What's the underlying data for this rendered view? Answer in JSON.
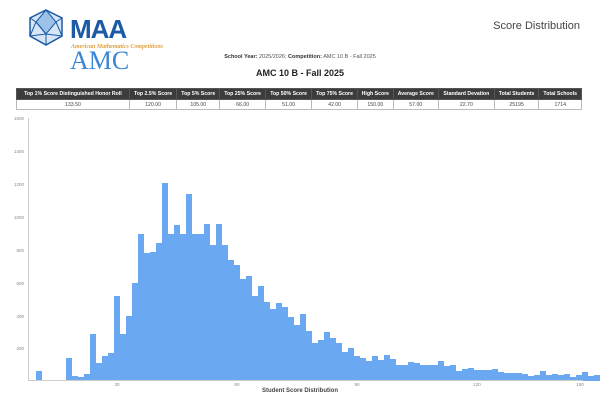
{
  "header": {
    "logo_main": "MAA",
    "logo_amc": "AMC",
    "logo_sub": "American Mathematics Competitions",
    "page_title": "Score Distribution"
  },
  "filters": {
    "school_year_label": "School Year:",
    "school_year_value": "2025/2026;",
    "competition_label": "Competition:",
    "competition_value": "AMC 10 B - Fall 2025"
  },
  "competition_title": "AMC 10 B - Fall 2025",
  "stats_table": {
    "headers": [
      "Top 1% Score Distinguished Honor Roll",
      "Top 2.5% Score",
      "Top 5% Score",
      "Top 25% Score",
      "Top 50% Score",
      "Top 75% Score",
      "High Score",
      "Average Score",
      "Standard Devation",
      "Total Students",
      "Total Schools"
    ],
    "values": [
      "133.50",
      "120.00",
      "105.00",
      "66.00",
      "51.00",
      "42.00",
      "150.00",
      "57.00",
      "22.70",
      "25195",
      "1714"
    ]
  },
  "colors": {
    "bar": "#6aa8f2",
    "table_header": "#3c3c3c"
  },
  "chart_data": {
    "type": "bar",
    "title": "",
    "xlabel": "Student Score Distribution",
    "ylabel": "",
    "ylim": [
      0,
      1600
    ],
    "xlim": [
      7.5,
      150
    ],
    "yticks": [
      200,
      400,
      600,
      800,
      1000,
      1200,
      1400,
      1600
    ],
    "xticks": [
      30,
      60,
      90,
      120,
      150
    ],
    "grid": false,
    "legend": null,
    "x": [
      9,
      10.5,
      12,
      13.5,
      15,
      16.5,
      18,
      19.5,
      21,
      22.5,
      24,
      25.5,
      27,
      28.5,
      30,
      31.5,
      33,
      34.5,
      36,
      37.5,
      39,
      40.5,
      42,
      43.5,
      45,
      46.5,
      48,
      49.5,
      51,
      52.5,
      54,
      55.5,
      57,
      58.5,
      60,
      61.5,
      63,
      64.5,
      66,
      67.5,
      69,
      70.5,
      72,
      73.5,
      75,
      76.5,
      78,
      79.5,
      81,
      82.5,
      84,
      85.5,
      87,
      88.5,
      90,
      91.5,
      93,
      94.5,
      96,
      97.5,
      99,
      100.5,
      102,
      103.5,
      105,
      106.5,
      108,
      109.5,
      111,
      112.5,
      114,
      115.5,
      117,
      118.5,
      120,
      121.5,
      123,
      124.5,
      126,
      127.5,
      129,
      130.5,
      132,
      133.5,
      135,
      136.5,
      138,
      139.5,
      141,
      142.5,
      144,
      145.5,
      147,
      148.5,
      150
    ],
    "values": [
      5,
      60,
      8,
      8,
      8,
      8,
      140,
      30,
      25,
      40,
      290,
      110,
      150,
      170,
      520,
      290,
      395,
      600,
      900,
      780,
      790,
      840,
      1210,
      900,
      950,
      900,
      1140,
      900,
      900,
      960,
      830,
      960,
      830,
      740,
      710,
      620,
      640,
      520,
      580,
      480,
      440,
      475,
      450,
      390,
      340,
      410,
      305,
      230,
      250,
      300,
      260,
      230,
      180,
      200,
      150,
      140,
      120,
      150,
      130,
      160,
      135,
      100,
      95,
      115,
      112,
      100,
      98,
      95,
      120,
      90,
      100,
      60,
      75,
      80,
      70,
      70,
      70,
      75,
      55,
      50,
      48,
      50,
      45,
      30,
      38,
      60,
      35,
      42,
      38,
      45,
      25,
      38,
      55,
      30,
      38
    ],
    "bar_width_points": 1.5
  }
}
